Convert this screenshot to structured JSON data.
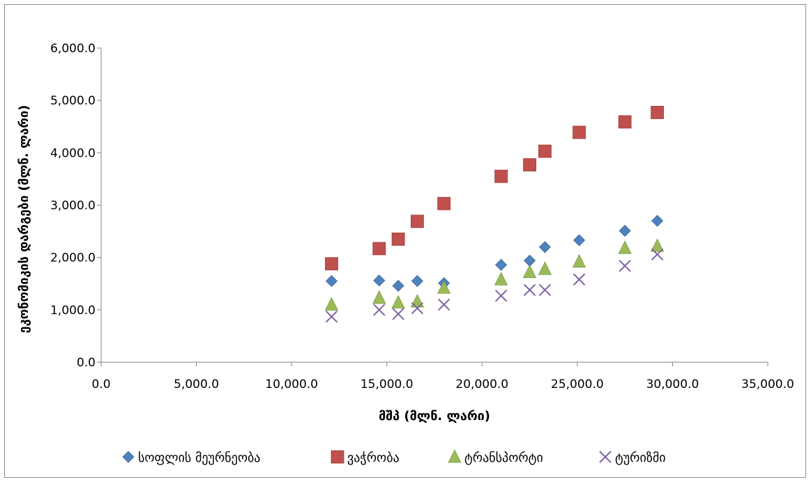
{
  "chart_data": {
    "type": "scatter",
    "xlabel": "მშპ (მლნ. ლარი)",
    "ylabel": "ეკონომიკის დარგები (მლნ. ლარი)",
    "xlim": [
      0,
      35000
    ],
    "ylim": [
      0,
      6000
    ],
    "x_ticks": [
      "0.0",
      "5,000.0",
      "10,000.0",
      "15,000.0",
      "20,000.0",
      "25,000.0",
      "30,000.0",
      "35,000.0"
    ],
    "y_ticks": [
      "0.0",
      "1,000.0",
      "2,000.0",
      "3,000.0",
      "4,000.0",
      "5,000.0",
      "6,000.0"
    ],
    "grid": false,
    "legend_position": "bottom",
    "x": [
      12100,
      14600,
      15600,
      16600,
      18000,
      21000,
      22500,
      23300,
      25100,
      27500,
      29200
    ],
    "series": [
      {
        "name": "სოფლის მეურნეობა",
        "marker": "diamond",
        "color": "#4f81bd",
        "values": [
          1550,
          1560,
          1460,
          1550,
          1510,
          1860,
          1940,
          2200,
          2330,
          2510,
          2700
        ]
      },
      {
        "name": "ვაჭრობა",
        "marker": "square",
        "color": "#c0504d",
        "values": [
          1880,
          2170,
          2350,
          2690,
          3030,
          3550,
          3770,
          4030,
          4390,
          4590,
          4770
        ]
      },
      {
        "name": "ტრანსპორტი",
        "marker": "triangle",
        "color": "#9bbb59",
        "values": [
          1100,
          1230,
          1140,
          1160,
          1420,
          1580,
          1720,
          1780,
          1920,
          2180,
          2220
        ]
      },
      {
        "name": "ტურიზმი",
        "marker": "x",
        "color": "#8064a2",
        "values": [
          870,
          1000,
          920,
          1030,
          1100,
          1270,
          1380,
          1380,
          1580,
          1840,
          2060
        ]
      }
    ]
  }
}
